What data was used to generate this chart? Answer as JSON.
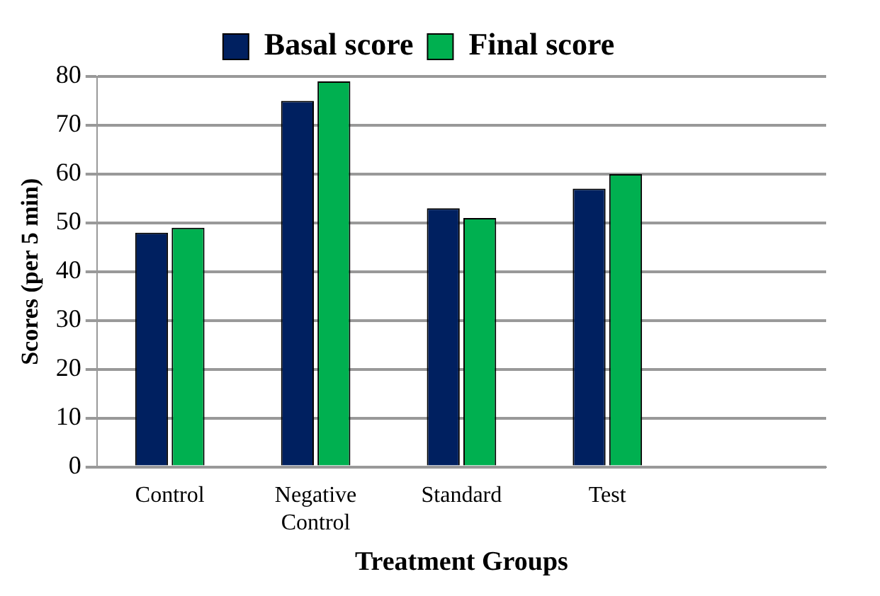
{
  "chart_data": {
    "type": "bar",
    "xlabel": "Treatment Groups",
    "ylabel": "Scores (per 5 min)",
    "categories": [
      "Control",
      "Negative Control",
      "Standard",
      "Test",
      null
    ],
    "series": [
      {
        "name": "Basal score",
        "color": "#002060",
        "values": [
          48,
          75,
          53,
          57,
          null
        ]
      },
      {
        "name": "Final score",
        "color": "#00b050",
        "values": [
          49,
          79,
          51,
          60,
          null
        ]
      }
    ],
    "ylim": [
      0,
      80
    ],
    "yticks": [
      0,
      10,
      20,
      30,
      40,
      50,
      60,
      70,
      80
    ],
    "grid": "y",
    "legend": "top"
  }
}
